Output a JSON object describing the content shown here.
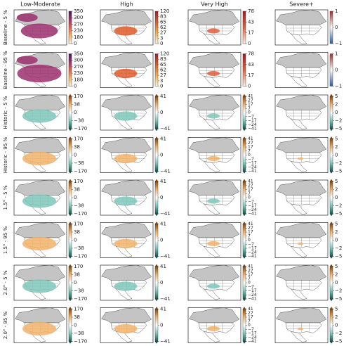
{
  "columns": [
    "Low-Moderate",
    "High",
    "Very High",
    "Severe+"
  ],
  "rows": [
    {
      "label": "Baseline - 5 %",
      "colorbars": [
        {
          "ticks": [
            350,
            300,
            270,
            230,
            180,
            0
          ],
          "colors": [
            "#f7f1dc",
            "#f6b35e",
            "#e0604e",
            "#9c2f6f",
            "#3b1b5a"
          ]
        },
        {
          "ticks": [
            120,
            83,
            65,
            62,
            27,
            3,
            0
          ],
          "colors": [
            "#fff5e0",
            "#f5b04a",
            "#e05a2a",
            "#a31e2a"
          ]
        },
        {
          "ticks": [
            78,
            43,
            17,
            0
          ],
          "colors": [
            "#fff0e0",
            "#e06040",
            "#9c1a2a"
          ]
        },
        {
          "ticks": [
            1,
            0,
            {
              "value": -1,
              "label": "−1"
            }
          ],
          "colors": [
            "#2c5aa0",
            "#ffffff",
            "#a52a2a"
          ]
        }
      ]
    },
    {
      "label": "Baseline - 95 %",
      "colorbars": [
        {
          "ticks": [
            350,
            300,
            270,
            230,
            180,
            0
          ],
          "colors": [
            "#f7f1dc",
            "#f6b35e",
            "#e0604e",
            "#9c2f6f",
            "#3b1b5a"
          ]
        },
        {
          "ticks": [
            120,
            83,
            65,
            62,
            27,
            3,
            0
          ],
          "colors": [
            "#fff5e0",
            "#f5b04a",
            "#e05a2a",
            "#a31e2a"
          ]
        },
        {
          "ticks": [
            78,
            43,
            17,
            0
          ],
          "colors": [
            "#fff0e0",
            "#e06040",
            "#9c1a2a"
          ]
        },
        {
          "ticks": [
            1,
            0,
            {
              "value": -1,
              "label": "−1"
            }
          ],
          "colors": [
            "#2c5aa0",
            "#ffffff",
            "#a52a2a"
          ]
        }
      ]
    },
    {
      "label": "Historic - 5 %",
      "colorbars": [
        {
          "ticks": [
            170,
            38,
            0,
            {
              "value": -38,
              "label": "−38"
            },
            {
              "value": -170,
              "label": "−170"
            }
          ],
          "colors": [
            "#0b5e55",
            "#7fc7bb",
            "#ffffff",
            "#f2b36a",
            "#8c4a0a"
          ]
        },
        {
          "ticks": [
            41,
            0,
            {
              "value": -41,
              "label": "−41"
            }
          ],
          "colors": [
            "#0b5e55",
            "#7fc7bb",
            "#ffffff",
            "#f2b36a",
            "#8c4a0a"
          ]
        },
        {
          "ticks": [
            41,
            27,
            17,
            7,
            0,
            {
              "value": -7,
              "label": "−7"
            },
            {
              "value": -17,
              "label": "−17"
            },
            {
              "value": -24,
              "label": "−24"
            },
            {
              "value": -41,
              "label": "−41"
            }
          ],
          "colors": [
            "#0b5e55",
            "#7fc7bb",
            "#ffffff",
            "#f2b36a",
            "#8c4a0a"
          ]
        },
        {
          "ticks": [
            5,
            2,
            0,
            {
              "value": -2,
              "label": "−2"
            },
            {
              "value": -5,
              "label": "−5"
            }
          ],
          "colors": [
            "#0b5e55",
            "#7fc7bb",
            "#ffffff",
            "#f2b36a",
            "#8c4a0a"
          ]
        }
      ]
    },
    {
      "label": "Historic - 95 %",
      "colorbars": [
        {
          "ticks": [
            170,
            38,
            0,
            {
              "value": -38,
              "label": "−38"
            },
            {
              "value": -170,
              "label": "−170"
            }
          ],
          "colors": [
            "#0b5e55",
            "#7fc7bb",
            "#ffffff",
            "#f2b36a",
            "#8c4a0a"
          ]
        },
        {
          "ticks": [
            41,
            0,
            {
              "value": -41,
              "label": "−41"
            }
          ],
          "colors": [
            "#0b5e55",
            "#7fc7bb",
            "#ffffff",
            "#f2b36a",
            "#8c4a0a"
          ]
        },
        {
          "ticks": [
            41,
            27,
            17,
            7,
            0,
            {
              "value": -7,
              "label": "−7"
            },
            {
              "value": -17,
              "label": "−17"
            },
            {
              "value": -24,
              "label": "−24"
            },
            {
              "value": -41,
              "label": "−41"
            }
          ],
          "colors": [
            "#0b5e55",
            "#7fc7bb",
            "#ffffff",
            "#f2b36a",
            "#8c4a0a"
          ]
        },
        {
          "ticks": [
            5,
            2,
            0,
            {
              "value": -2,
              "label": "−2"
            },
            {
              "value": -5,
              "label": "−5"
            }
          ],
          "colors": [
            "#0b5e55",
            "#7fc7bb",
            "#ffffff",
            "#f2b36a",
            "#8c4a0a"
          ]
        }
      ]
    },
    {
      "label": "1.5° - 5 %",
      "colorbars": [
        {
          "ticks": [
            170,
            38,
            0,
            {
              "value": -38,
              "label": "−38"
            },
            {
              "value": -170,
              "label": "−170"
            }
          ],
          "colors": [
            "#0b5e55",
            "#7fc7bb",
            "#ffffff",
            "#f2b36a",
            "#8c4a0a"
          ]
        },
        {
          "ticks": [
            41,
            0,
            {
              "value": -41,
              "label": "−41"
            }
          ],
          "colors": [
            "#0b5e55",
            "#7fc7bb",
            "#ffffff",
            "#f2b36a",
            "#8c4a0a"
          ]
        },
        {
          "ticks": [
            41,
            27,
            17,
            7,
            0,
            {
              "value": -7,
              "label": "−7"
            },
            {
              "value": -17,
              "label": "−17"
            },
            {
              "value": -24,
              "label": "−24"
            },
            {
              "value": -41,
              "label": "−41"
            }
          ],
          "colors": [
            "#0b5e55",
            "#7fc7bb",
            "#ffffff",
            "#f2b36a",
            "#8c4a0a"
          ]
        },
        {
          "ticks": [
            5,
            2,
            0,
            {
              "value": -2,
              "label": "−2"
            },
            {
              "value": -5,
              "label": "−5"
            }
          ],
          "colors": [
            "#0b5e55",
            "#7fc7bb",
            "#ffffff",
            "#f2b36a",
            "#8c4a0a"
          ]
        }
      ]
    },
    {
      "label": "1.5° - 95 %",
      "colorbars": [
        {
          "ticks": [
            170,
            38,
            0,
            {
              "value": -38,
              "label": "−38"
            },
            {
              "value": -170,
              "label": "−170"
            }
          ],
          "colors": [
            "#0b5e55",
            "#7fc7bb",
            "#ffffff",
            "#f2b36a",
            "#8c4a0a"
          ]
        },
        {
          "ticks": [
            41,
            0,
            {
              "value": -41,
              "label": "−41"
            }
          ],
          "colors": [
            "#0b5e55",
            "#7fc7bb",
            "#ffffff",
            "#f2b36a",
            "#8c4a0a"
          ]
        },
        {
          "ticks": [
            41,
            27,
            17,
            7,
            0,
            {
              "value": -7,
              "label": "−7"
            },
            {
              "value": -17,
              "label": "−17"
            },
            {
              "value": -24,
              "label": "−24"
            },
            {
              "value": -41,
              "label": "−41"
            }
          ],
          "colors": [
            "#0b5e55",
            "#7fc7bb",
            "#ffffff",
            "#f2b36a",
            "#8c4a0a"
          ]
        },
        {
          "ticks": [
            5,
            2,
            0,
            {
              "value": -2,
              "label": "−2"
            },
            {
              "value": -5,
              "label": "−5"
            }
          ],
          "colors": [
            "#0b5e55",
            "#7fc7bb",
            "#ffffff",
            "#f2b36a",
            "#8c4a0a"
          ]
        }
      ]
    },
    {
      "label": "2.0° - 5 %",
      "colorbars": [
        {
          "ticks": [
            170,
            38,
            0,
            {
              "value": -38,
              "label": "−38"
            },
            {
              "value": -170,
              "label": "−170"
            }
          ],
          "colors": [
            "#0b5e55",
            "#7fc7bb",
            "#ffffff",
            "#f2b36a",
            "#8c4a0a"
          ]
        },
        {
          "ticks": [
            41,
            0,
            {
              "value": -41,
              "label": "−41"
            }
          ],
          "colors": [
            "#0b5e55",
            "#7fc7bb",
            "#ffffff",
            "#f2b36a",
            "#8c4a0a"
          ]
        },
        {
          "ticks": [
            41,
            27,
            17,
            7,
            0,
            {
              "value": -7,
              "label": "−7"
            },
            {
              "value": -17,
              "label": "−17"
            },
            {
              "value": -24,
              "label": "−24"
            },
            {
              "value": -41,
              "label": "−41"
            }
          ],
          "colors": [
            "#0b5e55",
            "#7fc7bb",
            "#ffffff",
            "#f2b36a",
            "#8c4a0a"
          ]
        },
        {
          "ticks": [
            5,
            2,
            0,
            {
              "value": -2,
              "label": "−2"
            },
            {
              "value": -5,
              "label": "−5"
            }
          ],
          "colors": [
            "#0b5e55",
            "#7fc7bb",
            "#ffffff",
            "#f2b36a",
            "#8c4a0a"
          ]
        }
      ]
    },
    {
      "label": "2.0° - 95 %",
      "colorbars": [
        {
          "ticks": [
            170,
            38,
            0,
            {
              "value": -38,
              "label": "−38"
            },
            {
              "value": -170,
              "label": "−170"
            }
          ],
          "colors": [
            "#0b5e55",
            "#7fc7bb",
            "#ffffff",
            "#f2b36a",
            "#8c4a0a"
          ]
        },
        {
          "ticks": [
            41,
            0,
            {
              "value": -41,
              "label": "−41"
            }
          ],
          "colors": [
            "#0b5e55",
            "#7fc7bb",
            "#ffffff",
            "#f2b36a",
            "#8c4a0a"
          ]
        },
        {
          "ticks": [
            41,
            27,
            17,
            7,
            0,
            {
              "value": -7,
              "label": "−7"
            },
            {
              "value": -17,
              "label": "−17"
            },
            {
              "value": -24,
              "label": "−24"
            },
            {
              "value": -41,
              "label": "−41"
            }
          ],
          "colors": [
            "#0b5e55",
            "#7fc7bb",
            "#ffffff",
            "#f2b36a",
            "#8c4a0a"
          ]
        },
        {
          "ticks": [
            5,
            2,
            0,
            {
              "value": -2,
              "label": "−2"
            },
            {
              "value": -5,
              "label": "−5"
            }
          ],
          "colors": [
            "#0b5e55",
            "#7fc7bb",
            "#ffffff",
            "#f2b36a",
            "#8c4a0a"
          ]
        }
      ]
    }
  ]
}
